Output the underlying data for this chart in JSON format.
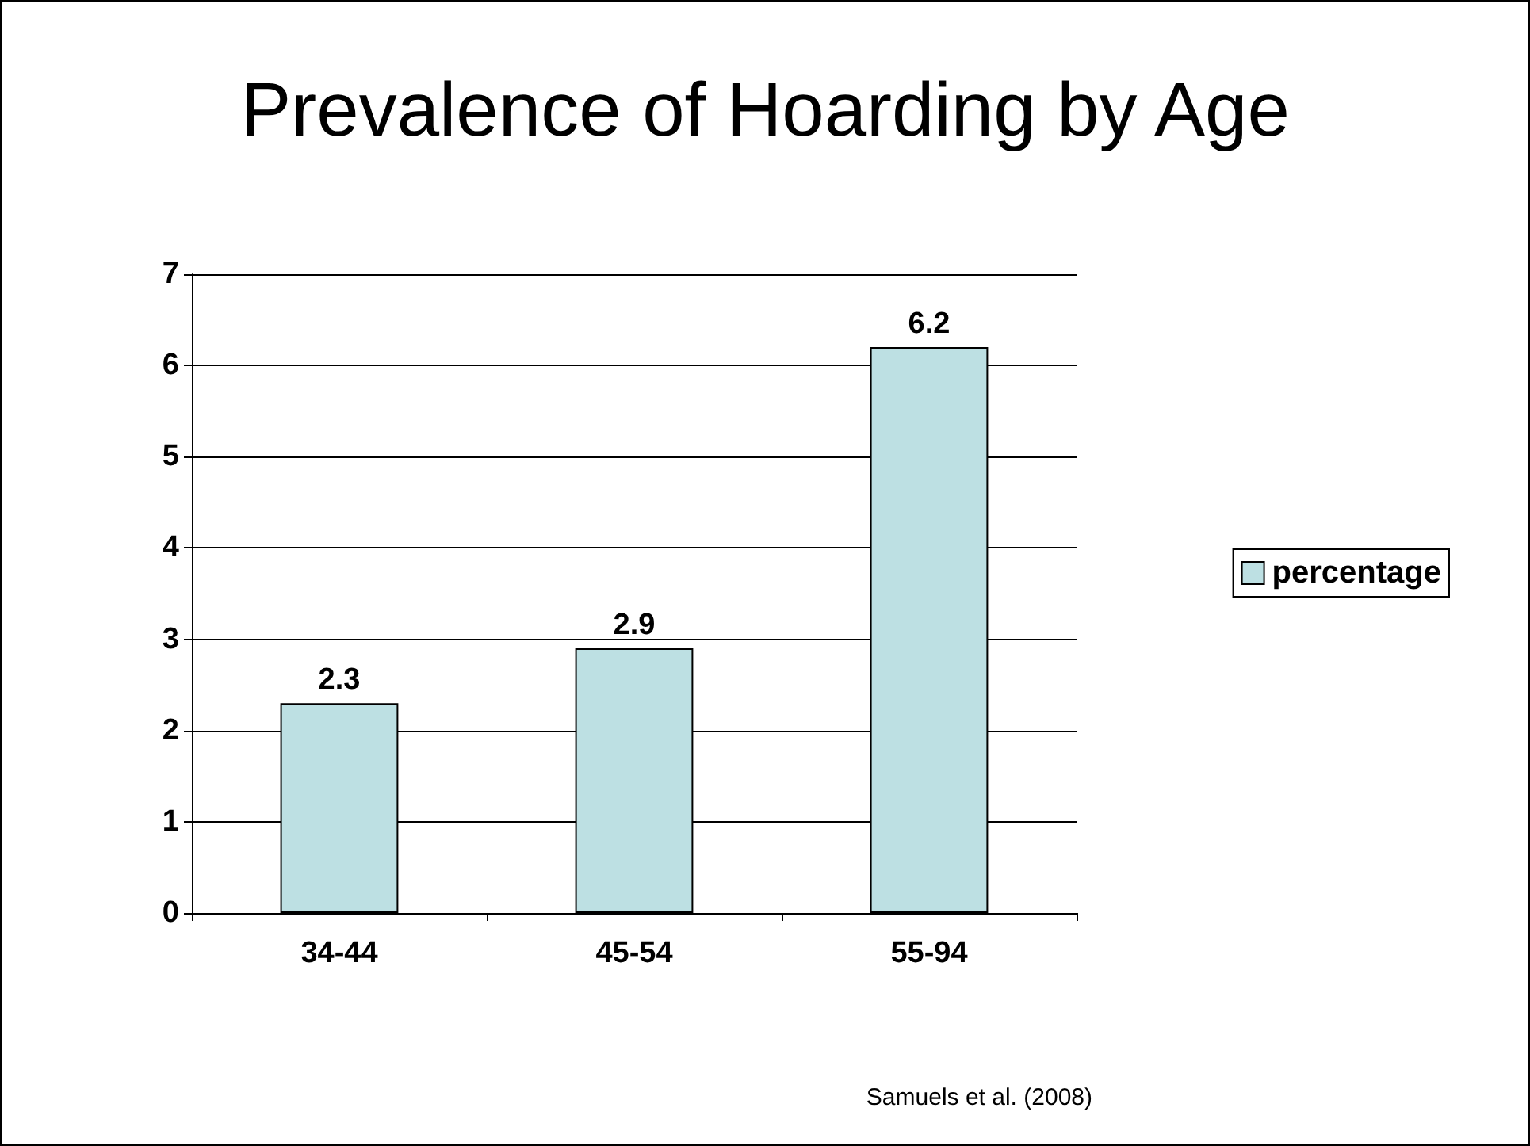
{
  "chart_data": {
    "type": "bar",
    "title": "Prevalence of Hoarding by Age",
    "categories": [
      "34-44",
      "45-54",
      "55-94"
    ],
    "series": [
      {
        "name": "percentage",
        "color": "#bde0e3",
        "values": [
          2.3,
          2.9,
          6.2
        ]
      }
    ],
    "ylim": [
      0,
      7
    ],
    "yticks": [
      0,
      1,
      2,
      3,
      4,
      5,
      6,
      7
    ],
    "grid": "y",
    "legend": "right",
    "data_labels": true,
    "annotations": [
      "Samuels et al. (2008)"
    ]
  }
}
